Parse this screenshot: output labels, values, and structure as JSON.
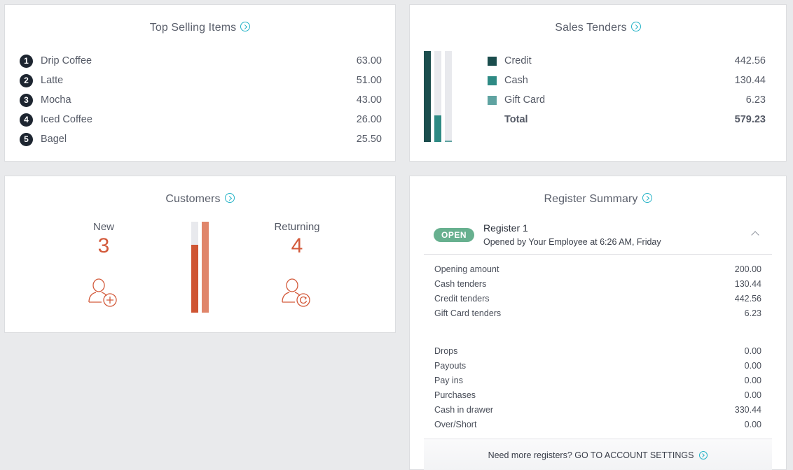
{
  "top_selling": {
    "title": "Top Selling Items",
    "items": [
      {
        "rank": "1",
        "name": "Drip Coffee",
        "value": "63.00"
      },
      {
        "rank": "2",
        "name": "Latte",
        "value": "51.00"
      },
      {
        "rank": "3",
        "name": "Mocha",
        "value": "43.00"
      },
      {
        "rank": "4",
        "name": "Iced Coffee",
        "value": "26.00"
      },
      {
        "rank": "5",
        "name": "Bagel",
        "value": "25.50"
      }
    ]
  },
  "sales_tenders": {
    "title": "Sales Tenders",
    "rows": [
      {
        "name": "Credit",
        "value": "442.56",
        "color": "#1b4d4d"
      },
      {
        "name": "Cash",
        "value": "130.44",
        "color": "#2e8a84"
      },
      {
        "name": "Gift Card",
        "value": "6.23",
        "color": "#5fa3a1"
      }
    ],
    "total": {
      "name": "Total",
      "value": "579.23"
    },
    "bar_fractions": [
      1.0,
      0.295,
      0.014
    ]
  },
  "customers": {
    "title": "Customers",
    "new": {
      "label": "New",
      "count": "3"
    },
    "returning": {
      "label": "Returning",
      "count": "4"
    },
    "bar_fractions": [
      0.75,
      1.0
    ],
    "colors": {
      "new": "#cf5533",
      "returning": "#e0856a"
    }
  },
  "register": {
    "title": "Register Summary",
    "status": "OPEN",
    "name": "Register 1",
    "subtitle": "Opened by Your Employee at 6:26 AM, Friday",
    "group1": [
      {
        "label": "Opening amount",
        "value": "200.00"
      },
      {
        "label": "Cash tenders",
        "value": "130.44"
      },
      {
        "label": "Credit tenders",
        "value": "442.56"
      },
      {
        "label": "Gift Card tenders",
        "value": "6.23"
      }
    ],
    "group2": [
      {
        "label": "Drops",
        "value": "0.00"
      },
      {
        "label": "Payouts",
        "value": "0.00"
      },
      {
        "label": "Pay ins",
        "value": "0.00"
      },
      {
        "label": "Purchases",
        "value": "0.00"
      },
      {
        "label": "Cash in drawer",
        "value": "330.44"
      },
      {
        "label": "Over/Short",
        "value": "0.00"
      }
    ],
    "footer": "Need more registers? GO TO ACCOUNT SETTINGS"
  }
}
